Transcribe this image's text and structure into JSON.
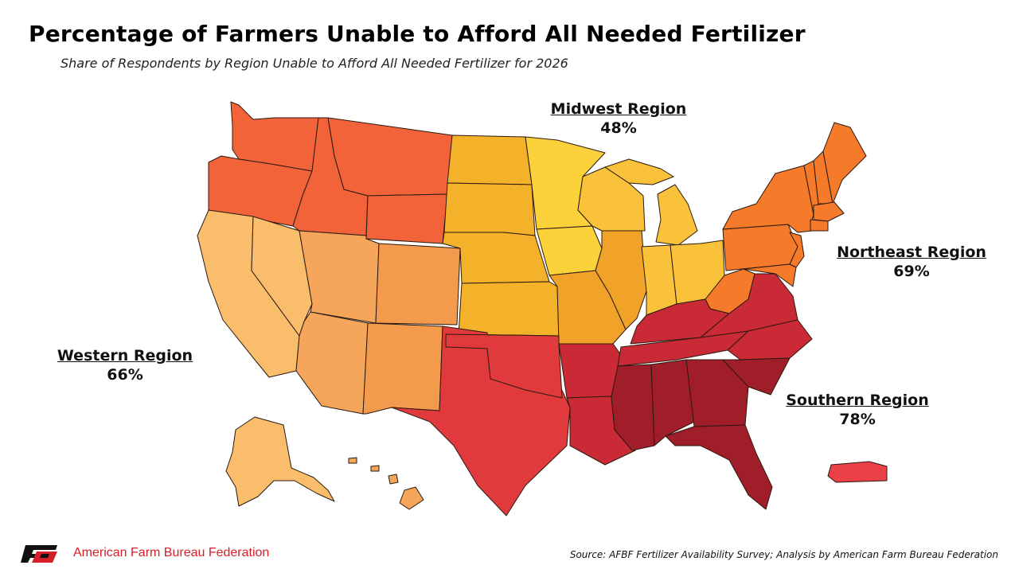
{
  "title": "Percentage of Farmers Unable to Afford All Needed Fertilizer",
  "subtitle": "Share of Respondents by Region Unable to Afford All Needed Fertilizer for 2026",
  "regions": [
    {
      "key": "midwest",
      "name": "Midwest Region",
      "value": "48%"
    },
    {
      "key": "northeast",
      "name": "Northeast Region",
      "value": "69%"
    },
    {
      "key": "western",
      "name": "Western Region",
      "value": "66%"
    },
    {
      "key": "southern",
      "name": "Southern Region",
      "value": "78%"
    }
  ],
  "state_colors": {
    "west_north": "#f2633a",
    "west_south": "#f9bd6c",
    "west_mid": "#f6a65a",
    "west_colorado": "#f49a4c",
    "midwest_plains": "#f4b22a",
    "midwest_mn_ia": "#fcd23a",
    "midwest_great_lakes": "#f9c23a",
    "midwest_mo_il_in": "#f1a228",
    "northeast": "#f57a2a",
    "south_tx_ok": "#e03a3c",
    "south_mid": "#c92a36",
    "south_deep": "#a01e2a",
    "puerto_rico": "#e94147"
  },
  "footer": {
    "organization": "American Farm Bureau Federation",
    "source": "Source: AFBF Fertilizer Availability Survey; Analysis by American Farm Bureau Federation",
    "logo_icon": "afbf-logo-icon"
  }
}
